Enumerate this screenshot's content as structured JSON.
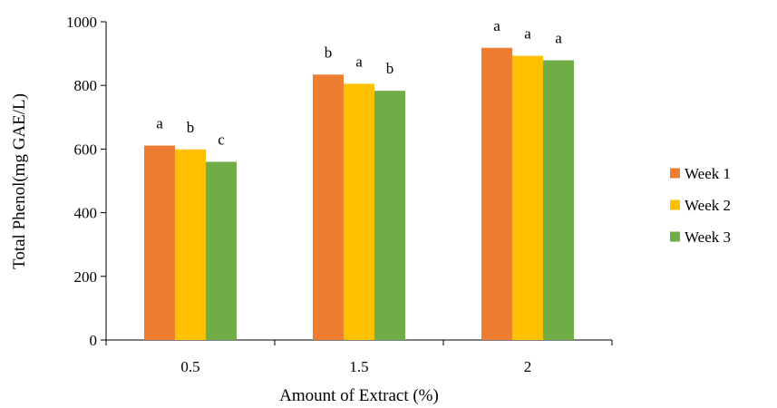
{
  "chart_data": {
    "type": "bar",
    "title": "",
    "xlabel": "Amount of Extract (%)",
    "ylabel": "Total Phenol(mg GAE/L)",
    "categories": [
      "0.5",
      "1.5",
      "2"
    ],
    "ylim": [
      0,
      1000
    ],
    "yticks": [
      "0",
      "200",
      "400",
      "600",
      "800",
      "1000"
    ],
    "grid": false,
    "legend_position": "right",
    "series": [
      {
        "name": "Week 1",
        "color": "#ED7D31",
        "values": [
          611,
          834,
          918
        ],
        "labels": [
          "a",
          "b",
          "a"
        ]
      },
      {
        "name": "Week 2",
        "color": "#FFC000",
        "values": [
          599,
          805,
          893
        ],
        "labels": [
          "b",
          "a",
          "a"
        ]
      },
      {
        "name": "Week 3",
        "color": "#70AD47",
        "values": [
          560,
          783,
          879
        ],
        "labels": [
          "c",
          "b",
          "a"
        ]
      }
    ]
  }
}
